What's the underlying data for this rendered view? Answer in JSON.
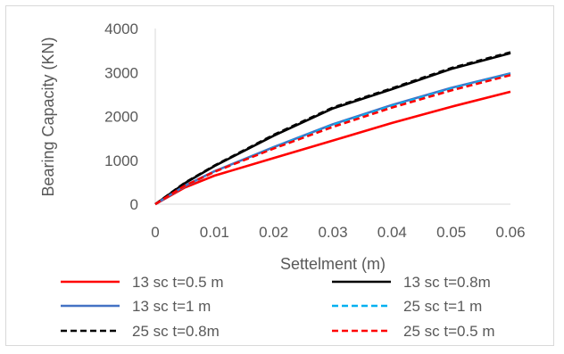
{
  "chart_data": {
    "type": "line",
    "title": "",
    "xlabel": "Settelment (m)",
    "ylabel": "Bearing Capacity (KN)",
    "xlim": [
      0,
      0.06
    ],
    "ylim": [
      0,
      4000
    ],
    "x_ticks": [
      "0",
      "0.01",
      "0.02",
      "0.03",
      "0.04",
      "0.05",
      "0.06"
    ],
    "y_ticks": [
      "0",
      "1000",
      "2000",
      "3000",
      "4000"
    ],
    "grid": false,
    "legend_position": "bottom",
    "series": [
      {
        "name": "13 sc t=0.5 m",
        "color": "#ff0000",
        "dash": "solid",
        "x": [
          0,
          0.005,
          0.01,
          0.02,
          0.03,
          0.04,
          0.05,
          0.06
        ],
        "y": [
          0,
          380,
          650,
          1050,
          1450,
          1850,
          2220,
          2560
        ]
      },
      {
        "name": "13 sc t=0.8m",
        "color": "#000000",
        "dash": "solid",
        "x": [
          0,
          0.005,
          0.01,
          0.02,
          0.03,
          0.04,
          0.05,
          0.06
        ],
        "y": [
          0,
          480,
          870,
          1560,
          2180,
          2620,
          3080,
          3440
        ]
      },
      {
        "name": "13 sc t=1 m",
        "color": "#4472c4",
        "dash": "solid",
        "x": [
          0,
          0.005,
          0.01,
          0.02,
          0.03,
          0.04,
          0.05,
          0.06
        ],
        "y": [
          0,
          420,
          750,
          1300,
          1820,
          2260,
          2650,
          2980
        ]
      },
      {
        "name": "25 sc t=1 m",
        "color": "#00b0f0",
        "dash": "dashed",
        "x": [
          0,
          0.005,
          0.01,
          0.02,
          0.03,
          0.04,
          0.05,
          0.06
        ],
        "y": [
          0,
          410,
          740,
          1290,
          1800,
          2240,
          2630,
          2960
        ]
      },
      {
        "name": "25 sc t=0.8m",
        "color": "#000000",
        "dash": "dashed",
        "x": [
          0,
          0.005,
          0.01,
          0.02,
          0.03,
          0.04,
          0.05,
          0.06
        ],
        "y": [
          0,
          490,
          880,
          1580,
          2200,
          2640,
          3100,
          3460
        ]
      },
      {
        "name": "25 sc t=0.5 m",
        "color": "#ff0000",
        "dash": "dashed",
        "x": [
          0,
          0.005,
          0.01,
          0.02,
          0.03,
          0.04,
          0.05,
          0.06
        ],
        "y": [
          0,
          420,
          740,
          1270,
          1760,
          2200,
          2590,
          2940
        ]
      }
    ]
  }
}
